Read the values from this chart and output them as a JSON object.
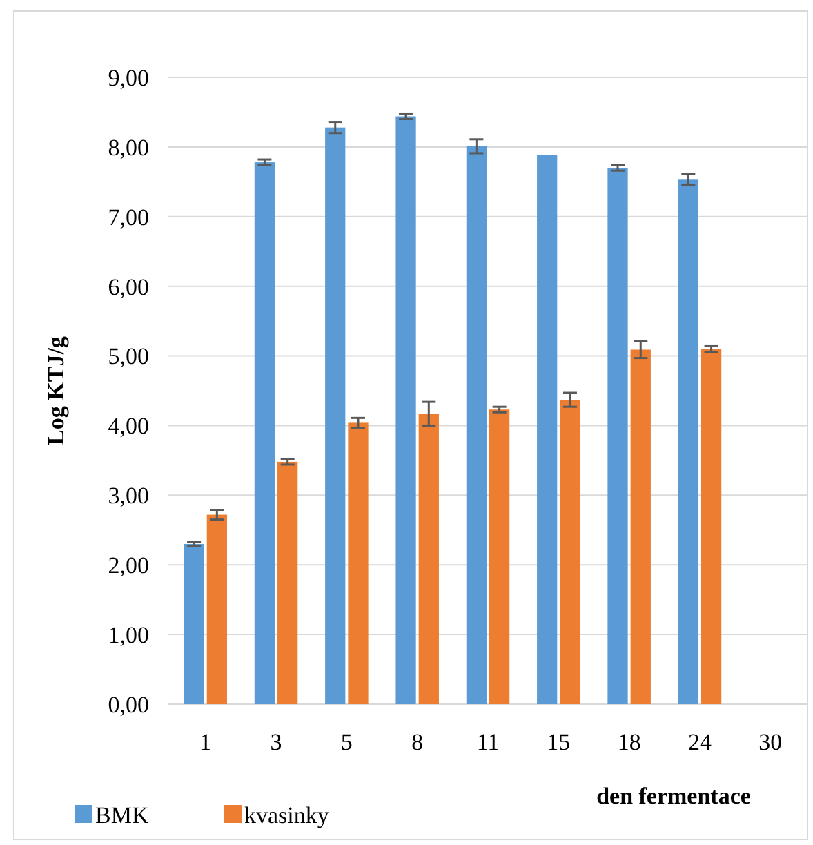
{
  "chart_data": {
    "type": "bar",
    "xlabel": "den fermentace",
    "ylabel": "Log KTJ/g",
    "categories": [
      "1",
      "3",
      "5",
      "8",
      "11",
      "15",
      "18",
      "24",
      "30"
    ],
    "series": [
      {
        "name": "BMK",
        "color": "#5b9bd5",
        "values": [
          2.3,
          7.78,
          8.28,
          8.44,
          8.01,
          7.89,
          7.7,
          7.53,
          null
        ],
        "errors": [
          0.03,
          0.04,
          0.08,
          0.04,
          0.1,
          null,
          0.04,
          0.08,
          null
        ]
      },
      {
        "name": "kvasinky",
        "color": "#ed7d31",
        "values": [
          2.72,
          3.48,
          4.04,
          4.17,
          4.23,
          4.37,
          5.09,
          5.1,
          null
        ],
        "errors": [
          0.07,
          0.04,
          0.07,
          0.17,
          0.04,
          0.1,
          0.12,
          0.04,
          null
        ]
      }
    ],
    "ylim": [
      0,
      9
    ],
    "yticks": [
      {
        "value": 0,
        "label": "0,00"
      },
      {
        "value": 1,
        "label": "1,00"
      },
      {
        "value": 2,
        "label": "2,00"
      },
      {
        "value": 3,
        "label": "3,00"
      },
      {
        "value": 4,
        "label": "4,00"
      },
      {
        "value": 5,
        "label": "5,00"
      },
      {
        "value": 6,
        "label": "6,00"
      },
      {
        "value": 7,
        "label": "7,00"
      },
      {
        "value": 8,
        "label": "8,00"
      },
      {
        "value": 9,
        "label": "9,00"
      }
    ],
    "grid": "y",
    "legend": "bottom left"
  }
}
